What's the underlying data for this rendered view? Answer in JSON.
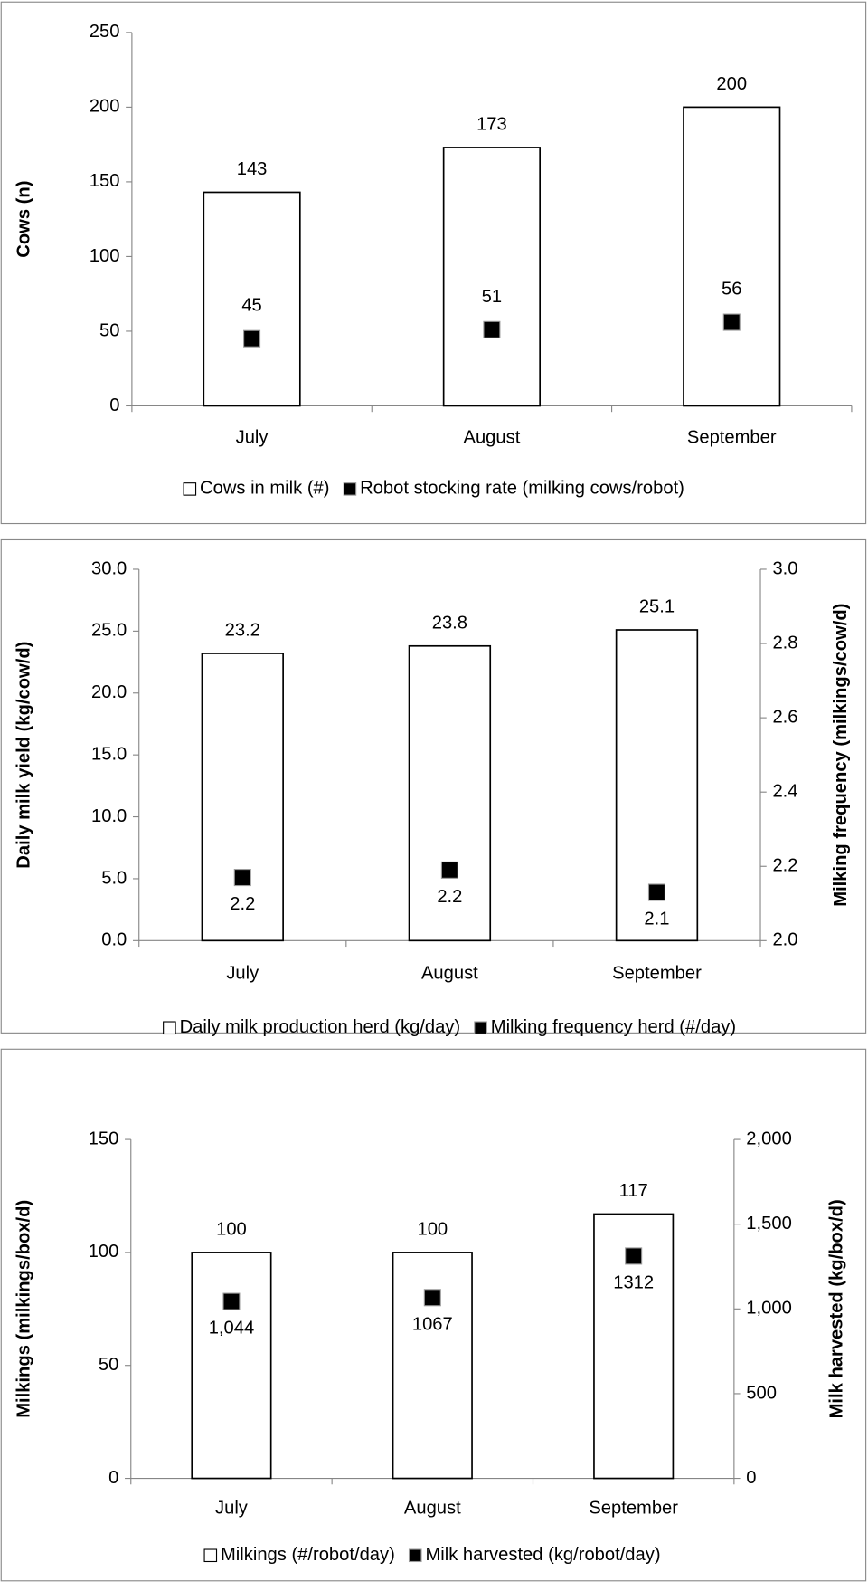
{
  "chart_data": [
    {
      "type": "bar",
      "y_label": "Cows (n)",
      "categories": [
        "July",
        "August",
        "September"
      ],
      "series": [
        {
          "name": "Cows in milk (#)",
          "type": "bar",
          "color": "#ffffff",
          "values": [
            143,
            173,
            200
          ]
        },
        {
          "name": "Robot stocking rate (milking cows/robot)",
          "type": "scatter",
          "color": "#000000",
          "values": [
            45,
            51,
            56
          ]
        }
      ],
      "ylim": [
        0,
        250
      ],
      "yticks": [
        0,
        50,
        100,
        150,
        200,
        250
      ],
      "legend": "bottom"
    },
    {
      "type": "bar",
      "y_label": "Daily milk yield (kg/cow/d)",
      "y2_label": "Milking frequency (milkings/cow/d)",
      "categories": [
        "July",
        "August",
        "September"
      ],
      "series": [
        {
          "name": "Daily milk production herd (kg/day)",
          "type": "bar",
          "color": "#ffffff",
          "values": [
            23.2,
            23.8,
            25.1
          ]
        },
        {
          "name": "Milking frequency herd (#/day)",
          "type": "scatter",
          "color": "#000000",
          "axis": "y2",
          "values": [
            2.17,
            2.19,
            2.13
          ],
          "value_labels": [
            "2.2",
            "2.2",
            "2.1"
          ]
        }
      ],
      "ylim": [
        0,
        30
      ],
      "yticks": [
        {
          "value": 0,
          "label": "0.0"
        },
        {
          "value": 5,
          "label": "5.0"
        },
        {
          "value": 10,
          "label": "10.0"
        },
        {
          "value": 15,
          "label": "15.0"
        },
        {
          "value": 20,
          "label": "20.0"
        },
        {
          "value": 25,
          "label": "25.0"
        },
        {
          "value": 30,
          "label": "30.0"
        }
      ],
      "y2lim": [
        2,
        3
      ],
      "y2ticks": [
        {
          "value": 2,
          "label": "2.0"
        },
        2.2,
        2.4,
        2.6,
        2.8,
        {
          "value": 3,
          "label": "3.0"
        }
      ],
      "legend": "bottom"
    },
    {
      "type": "bar",
      "y_label": "Milkings (milkings/box/d)",
      "y2_label": "Milk harvested (kg/box/d)",
      "categories": [
        "July",
        "August",
        "September"
      ],
      "series": [
        {
          "name": "Milkings (#/robot/day)",
          "type": "bar",
          "color": "#ffffff",
          "values": [
            100,
            100,
            117
          ]
        },
        {
          "name": "Milk harvested (kg/robot/day)",
          "type": "scatter",
          "color": "#000000",
          "axis": "y2",
          "values": [
            1044,
            1067,
            1312
          ],
          "value_labels": [
            "1,044",
            "1067",
            "1312"
          ]
        }
      ],
      "ylim": [
        0,
        150
      ],
      "yticks": [
        0,
        50,
        100,
        150
      ],
      "y2lim": [
        0,
        2000
      ],
      "y2ticks": [
        0,
        500,
        {
          "value": 1000,
          "label": "1,000"
        },
        {
          "value": 1500,
          "label": "1,500"
        },
        {
          "value": 2000,
          "label": "2,000"
        }
      ],
      "legend": "bottom"
    }
  ]
}
